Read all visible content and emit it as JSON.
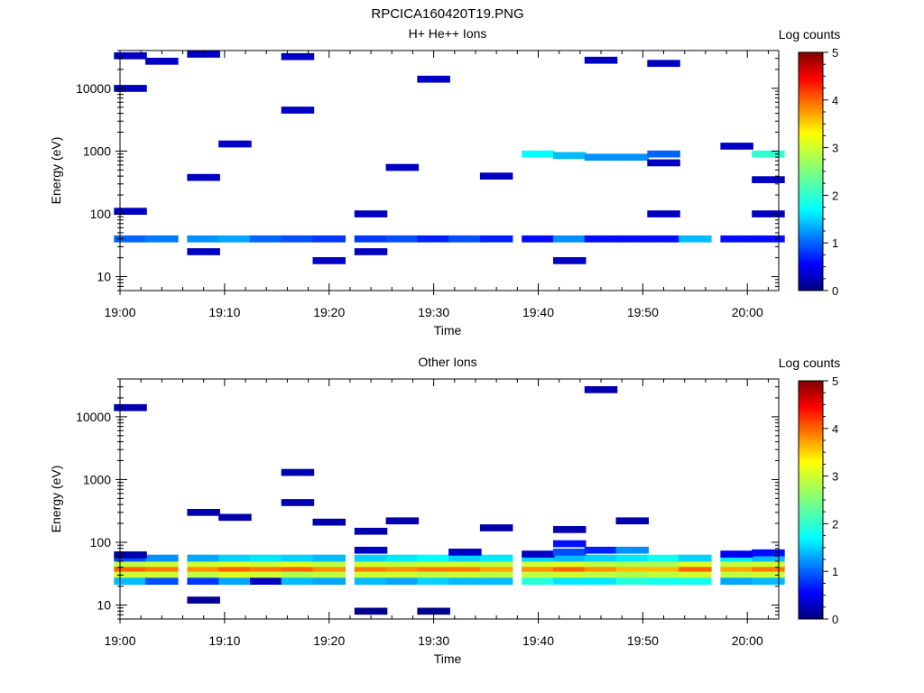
{
  "figure": {
    "title": "RPCICA160420T19.PNG"
  },
  "chart_data": [
    {
      "type": "heatmap",
      "title": "H+ He++ Ions",
      "xlabel": "Time",
      "ylabel": "Energy (eV)",
      "x_range": [
        "19:00",
        "20:03"
      ],
      "xticks": [
        "19:00",
        "19:10",
        "19:20",
        "19:30",
        "19:40",
        "19:50",
        "20:00"
      ],
      "y_range": [
        6,
        40000
      ],
      "y_scale": "log",
      "yticks": [
        "10",
        "100",
        "1000",
        "10000"
      ],
      "colorbar": {
        "label": "Log counts",
        "min": 0,
        "max": 5,
        "ticks": [
          "0",
          "1",
          "2",
          "3",
          "4",
          "5"
        ]
      },
      "time_bins": [
        "19:01",
        "19:04",
        "19:08",
        "19:11",
        "19:14",
        "19:17",
        "19:20",
        "19:24",
        "19:27",
        "19:30",
        "19:33",
        "19:36",
        "19:40",
        "19:43",
        "19:46",
        "19:49",
        "19:52",
        "19:55",
        "19:59",
        "20:02"
      ],
      "cells": [
        {
          "t": 0,
          "e": 40,
          "v": 1.0
        },
        {
          "t": 1,
          "e": 40,
          "v": 1.1
        },
        {
          "t": 2,
          "e": 40,
          "v": 1.2
        },
        {
          "t": 3,
          "e": 40,
          "v": 1.3
        },
        {
          "t": 4,
          "e": 40,
          "v": 1.0
        },
        {
          "t": 5,
          "e": 40,
          "v": 0.9
        },
        {
          "t": 6,
          "e": 40,
          "v": 0.8
        },
        {
          "t": 7,
          "e": 40,
          "v": 0.8
        },
        {
          "t": 8,
          "e": 40,
          "v": 0.9
        },
        {
          "t": 9,
          "e": 40,
          "v": 0.7
        },
        {
          "t": 10,
          "e": 40,
          "v": 0.9
        },
        {
          "t": 11,
          "e": 40,
          "v": 0.7
        },
        {
          "t": 12,
          "e": 40,
          "v": 0.6
        },
        {
          "t": 13,
          "e": 40,
          "v": 1.2
        },
        {
          "t": 14,
          "e": 40,
          "v": 0.6
        },
        {
          "t": 15,
          "e": 40,
          "v": 0.6
        },
        {
          "t": 16,
          "e": 40,
          "v": 0.6
        },
        {
          "t": 17,
          "e": 40,
          "v": 1.4
        },
        {
          "t": 18,
          "e": 40,
          "v": 0.6
        },
        {
          "t": 19,
          "e": 40,
          "v": 0.6
        },
        {
          "t": 2,
          "e": 25,
          "v": 0.3
        },
        {
          "t": 6,
          "e": 18,
          "v": 0.3
        },
        {
          "t": 7,
          "e": 25,
          "v": 0.3
        },
        {
          "t": 13,
          "e": 18,
          "v": 0.3
        },
        {
          "t": 19,
          "e": 900,
          "v": 2.0
        },
        {
          "t": 12,
          "e": 900,
          "v": 1.7
        },
        {
          "t": 13,
          "e": 850,
          "v": 1.4
        },
        {
          "t": 14,
          "e": 800,
          "v": 1.2
        },
        {
          "t": 15,
          "e": 800,
          "v": 1.2
        },
        {
          "t": 16,
          "e": 900,
          "v": 1.0
        },
        {
          "t": 0,
          "e": 33000,
          "v": 0.3
        },
        {
          "t": 1,
          "e": 27000,
          "v": 0.3
        },
        {
          "t": 2,
          "e": 35000,
          "v": 0.3
        },
        {
          "t": 5,
          "e": 32000,
          "v": 0.3
        },
        {
          "t": 14,
          "e": 28000,
          "v": 0.3
        },
        {
          "t": 16,
          "e": 25000,
          "v": 0.3
        },
        {
          "t": 0,
          "e": 10000,
          "v": 0.3
        },
        {
          "t": 9,
          "e": 14000,
          "v": 0.3
        },
        {
          "t": 3,
          "e": 1300,
          "v": 0.3
        },
        {
          "t": 5,
          "e": 4500,
          "v": 0.3
        },
        {
          "t": 18,
          "e": 1200,
          "v": 0.3
        },
        {
          "t": 16,
          "e": 650,
          "v": 0.3
        },
        {
          "t": 2,
          "e": 380,
          "v": 0.3
        },
        {
          "t": 8,
          "e": 550,
          "v": 0.3
        },
        {
          "t": 11,
          "e": 400,
          "v": 0.3
        },
        {
          "t": 19,
          "e": 350,
          "v": 0.3
        },
        {
          "t": 0,
          "e": 110,
          "v": 0.3
        },
        {
          "t": 7,
          "e": 100,
          "v": 0.3
        },
        {
          "t": 16,
          "e": 100,
          "v": 0.3
        },
        {
          "t": 19,
          "e": 100,
          "v": 0.3
        }
      ]
    },
    {
      "type": "heatmap",
      "title": "Other Ions",
      "xlabel": "Time",
      "ylabel": "Energy (eV)",
      "x_range": [
        "19:00",
        "20:03"
      ],
      "xticks": [
        "19:00",
        "19:10",
        "19:20",
        "19:30",
        "19:40",
        "19:50",
        "20:00"
      ],
      "y_range": [
        6,
        40000
      ],
      "y_scale": "log",
      "yticks": [
        "10",
        "100",
        "1000",
        "10000"
      ],
      "colorbar": {
        "label": "Log counts",
        "min": 0,
        "max": 5,
        "ticks": [
          "0",
          "1",
          "2",
          "3",
          "4",
          "5"
        ]
      },
      "time_bins": [
        "19:01",
        "19:04",
        "19:08",
        "19:11",
        "19:14",
        "19:17",
        "19:20",
        "19:24",
        "19:27",
        "19:30",
        "19:33",
        "19:36",
        "19:40",
        "19:43",
        "19:46",
        "19:49",
        "19:52",
        "19:55",
        "19:59",
        "20:02"
      ],
      "cells": [
        {
          "t": 0,
          "e": 38,
          "v": 4.0
        },
        {
          "t": 1,
          "e": 38,
          "v": 3.9
        },
        {
          "t": 2,
          "e": 38,
          "v": 3.8
        },
        {
          "t": 3,
          "e": 38,
          "v": 4.0
        },
        {
          "t": 4,
          "e": 38,
          "v": 3.9
        },
        {
          "t": 5,
          "e": 38,
          "v": 4.0
        },
        {
          "t": 6,
          "e": 38,
          "v": 3.8
        },
        {
          "t": 7,
          "e": 38,
          "v": 3.9
        },
        {
          "t": 8,
          "e": 38,
          "v": 3.8
        },
        {
          "t": 9,
          "e": 38,
          "v": 3.9
        },
        {
          "t": 10,
          "e": 38,
          "v": 3.9
        },
        {
          "t": 11,
          "e": 38,
          "v": 3.7
        },
        {
          "t": 12,
          "e": 38,
          "v": 3.8
        },
        {
          "t": 13,
          "e": 38,
          "v": 4.0
        },
        {
          "t": 14,
          "e": 38,
          "v": 3.8
        },
        {
          "t": 15,
          "e": 38,
          "v": 3.6
        },
        {
          "t": 16,
          "e": 38,
          "v": 3.6
        },
        {
          "t": 17,
          "e": 38,
          "v": 4.0
        },
        {
          "t": 18,
          "e": 38,
          "v": 3.7
        },
        {
          "t": 19,
          "e": 38,
          "v": 3.9
        },
        {
          "t": 0,
          "e": 46,
          "v": 2.9
        },
        {
          "t": 1,
          "e": 46,
          "v": 3.0
        },
        {
          "t": 2,
          "e": 46,
          "v": 3.0
        },
        {
          "t": 3,
          "e": 46,
          "v": 3.1
        },
        {
          "t": 4,
          "e": 46,
          "v": 3.0
        },
        {
          "t": 5,
          "e": 46,
          "v": 3.1
        },
        {
          "t": 6,
          "e": 46,
          "v": 2.9
        },
        {
          "t": 7,
          "e": 46,
          "v": 3.0
        },
        {
          "t": 8,
          "e": 46,
          "v": 2.9
        },
        {
          "t": 9,
          "e": 46,
          "v": 3.0
        },
        {
          "t": 10,
          "e": 46,
          "v": 3.0
        },
        {
          "t": 11,
          "e": 46,
          "v": 2.9
        },
        {
          "t": 12,
          "e": 46,
          "v": 3.0
        },
        {
          "t": 13,
          "e": 46,
          "v": 3.1
        },
        {
          "t": 14,
          "e": 46,
          "v": 2.9
        },
        {
          "t": 15,
          "e": 46,
          "v": 2.8
        },
        {
          "t": 16,
          "e": 46,
          "v": 2.8
        },
        {
          "t": 17,
          "e": 46,
          "v": 3.1
        },
        {
          "t": 18,
          "e": 46,
          "v": 2.9
        },
        {
          "t": 19,
          "e": 46,
          "v": 3.0
        },
        {
          "t": 0,
          "e": 30,
          "v": 3.0
        },
        {
          "t": 1,
          "e": 30,
          "v": 3.0
        },
        {
          "t": 2,
          "e": 30,
          "v": 2.9
        },
        {
          "t": 3,
          "e": 30,
          "v": 3.1
        },
        {
          "t": 4,
          "e": 30,
          "v": 3.0
        },
        {
          "t": 5,
          "e": 30,
          "v": 2.8
        },
        {
          "t": 6,
          "e": 30,
          "v": 2.9
        },
        {
          "t": 7,
          "e": 30,
          "v": 3.0
        },
        {
          "t": 8,
          "e": 30,
          "v": 3.0
        },
        {
          "t": 9,
          "e": 30,
          "v": 2.9
        },
        {
          "t": 10,
          "e": 30,
          "v": 3.0
        },
        {
          "t": 11,
          "e": 30,
          "v": 2.9
        },
        {
          "t": 12,
          "e": 30,
          "v": 2.9
        },
        {
          "t": 13,
          "e": 30,
          "v": 3.0
        },
        {
          "t": 14,
          "e": 30,
          "v": 2.9
        },
        {
          "t": 15,
          "e": 30,
          "v": 2.8
        },
        {
          "t": 16,
          "e": 30,
          "v": 2.9
        },
        {
          "t": 17,
          "e": 30,
          "v": 3.0
        },
        {
          "t": 18,
          "e": 30,
          "v": 2.9
        },
        {
          "t": 19,
          "e": 30,
          "v": 3.0
        },
        {
          "t": 0,
          "e": 24,
          "v": 1.4
        },
        {
          "t": 1,
          "e": 24,
          "v": 0.9
        },
        {
          "t": 2,
          "e": 24,
          "v": 0.8
        },
        {
          "t": 3,
          "e": 24,
          "v": 1.3
        },
        {
          "t": 4,
          "e": 24,
          "v": 0.3
        },
        {
          "t": 5,
          "e": 24,
          "v": 1.4
        },
        {
          "t": 6,
          "e": 24,
          "v": 1.3
        },
        {
          "t": 7,
          "e": 24,
          "v": 1.4
        },
        {
          "t": 8,
          "e": 24,
          "v": 1.3
        },
        {
          "t": 9,
          "e": 24,
          "v": 1.5
        },
        {
          "t": 10,
          "e": 24,
          "v": 1.4
        },
        {
          "t": 11,
          "e": 24,
          "v": 1.4
        },
        {
          "t": 12,
          "e": 24,
          "v": 1.9
        },
        {
          "t": 13,
          "e": 24,
          "v": 1.6
        },
        {
          "t": 14,
          "e": 24,
          "v": 1.6
        },
        {
          "t": 15,
          "e": 24,
          "v": 1.9
        },
        {
          "t": 16,
          "e": 24,
          "v": 1.8
        },
        {
          "t": 17,
          "e": 24,
          "v": 1.8
        },
        {
          "t": 18,
          "e": 24,
          "v": 1.3
        },
        {
          "t": 19,
          "e": 24,
          "v": 1.4
        },
        {
          "t": 0,
          "e": 56,
          "v": 0.9
        },
        {
          "t": 1,
          "e": 56,
          "v": 1.2
        },
        {
          "t": 2,
          "e": 56,
          "v": 1.3
        },
        {
          "t": 3,
          "e": 56,
          "v": 1.5
        },
        {
          "t": 4,
          "e": 56,
          "v": 1.6
        },
        {
          "t": 5,
          "e": 56,
          "v": 1.5
        },
        {
          "t": 6,
          "e": 56,
          "v": 1.4
        },
        {
          "t": 7,
          "e": 56,
          "v": 1.5
        },
        {
          "t": 8,
          "e": 56,
          "v": 1.6
        },
        {
          "t": 9,
          "e": 56,
          "v": 1.7
        },
        {
          "t": 10,
          "e": 56,
          "v": 1.5
        },
        {
          "t": 11,
          "e": 56,
          "v": 1.6
        },
        {
          "t": 12,
          "e": 56,
          "v": 1.5
        },
        {
          "t": 13,
          "e": 56,
          "v": 1.4
        },
        {
          "t": 14,
          "e": 56,
          "v": 1.5
        },
        {
          "t": 15,
          "e": 56,
          "v": 1.6
        },
        {
          "t": 16,
          "e": 56,
          "v": 1.8
        },
        {
          "t": 17,
          "e": 56,
          "v": 1.5
        },
        {
          "t": 18,
          "e": 56,
          "v": 1.6
        },
        {
          "t": 19,
          "e": 56,
          "v": 1.4
        },
        {
          "t": 0,
          "e": 63,
          "v": 0.2
        },
        {
          "t": 7,
          "e": 75,
          "v": 0.3
        },
        {
          "t": 10,
          "e": 70,
          "v": 0.3
        },
        {
          "t": 12,
          "e": 65,
          "v": 0.3
        },
        {
          "t": 13,
          "e": 70,
          "v": 0.9
        },
        {
          "t": 13,
          "e": 95,
          "v": 0.6
        },
        {
          "t": 14,
          "e": 75,
          "v": 0.7
        },
        {
          "t": 15,
          "e": 75,
          "v": 1.2
        },
        {
          "t": 18,
          "e": 65,
          "v": 0.5
        },
        {
          "t": 19,
          "e": 68,
          "v": 0.6
        },
        {
          "t": 2,
          "e": 12,
          "v": 0.1
        },
        {
          "t": 7,
          "e": 8,
          "v": 0.05
        },
        {
          "t": 9,
          "e": 8,
          "v": 0.05
        },
        {
          "t": 0,
          "e": 14000,
          "v": 0.2
        },
        {
          "t": 14,
          "e": 27000,
          "v": 0.2
        },
        {
          "t": 5,
          "e": 1300,
          "v": 0.2
        },
        {
          "t": 5,
          "e": 430,
          "v": 0.2
        },
        {
          "t": 2,
          "e": 300,
          "v": 0.2
        },
        {
          "t": 3,
          "e": 250,
          "v": 0.2
        },
        {
          "t": 7,
          "e": 150,
          "v": 0.2
        },
        {
          "t": 8,
          "e": 220,
          "v": 0.2
        },
        {
          "t": 13,
          "e": 160,
          "v": 0.2
        },
        {
          "t": 15,
          "e": 220,
          "v": 0.2
        },
        {
          "t": 11,
          "e": 170,
          "v": 0.2
        },
        {
          "t": 6,
          "e": 210,
          "v": 0.2
        }
      ]
    }
  ]
}
